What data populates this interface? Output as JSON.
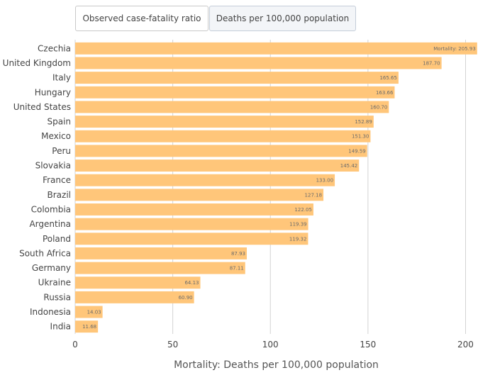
{
  "tabs": [
    {
      "label": "Observed case-fatality ratio",
      "active": false
    },
    {
      "label": "Deaths per 100,000 population",
      "active": true
    }
  ],
  "chart_data": {
    "type": "bar",
    "orientation": "horizontal",
    "categories": [
      "Czechia",
      "United Kingdom",
      "Italy",
      "Hungary",
      "United States",
      "Spain",
      "Mexico",
      "Peru",
      "Slovakia",
      "France",
      "Brazil",
      "Colombia",
      "Argentina",
      "Poland",
      "South Africa",
      "Germany",
      "Ukraine",
      "Russia",
      "Indonesia",
      "India"
    ],
    "values": [
      205.93,
      187.7,
      165.65,
      163.66,
      160.7,
      152.89,
      151.3,
      149.59,
      145.42,
      133.0,
      127.18,
      122.05,
      119.39,
      119.32,
      87.93,
      87.11,
      64.13,
      60.9,
      14.03,
      11.68
    ],
    "value_labels": [
      "205.93",
      "187.70",
      "165.65",
      "163.66",
      "160.70",
      "152.89",
      "151.30",
      "149.59",
      "145.42",
      "133.00",
      "127.18",
      "122.05",
      "119.39",
      "119.32",
      "87.93",
      "87.11",
      "64.13",
      "60.90",
      "14.03",
      "11.68"
    ],
    "first_label_prefix": "Mortality: ",
    "xticks": [
      0,
      50,
      100,
      150,
      200
    ],
    "xlim": [
      0,
      206
    ],
    "xlabel": "Mortality: Deaths per 100,000 population",
    "ylabel": "",
    "title": "",
    "grid": true,
    "bar_color": "#ffc67a",
    "grid_color": "#d3d3d3"
  }
}
